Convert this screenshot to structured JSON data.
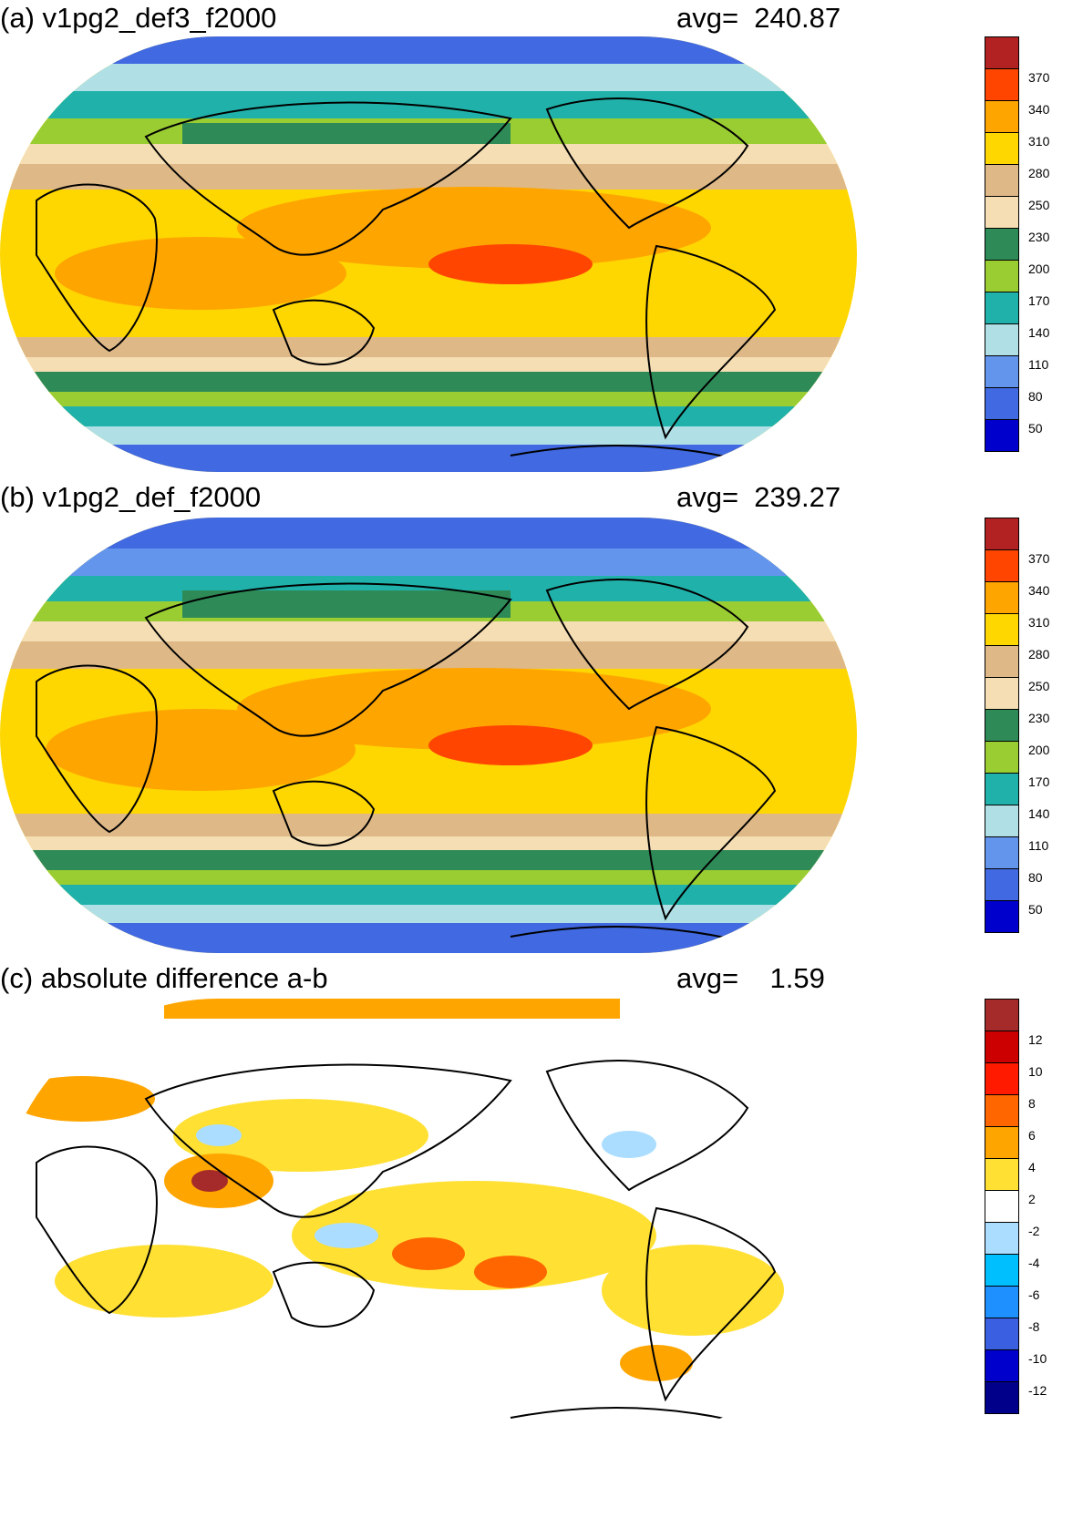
{
  "panels": [
    {
      "title": "(a) v1pg2_def3_f2000",
      "avg_text": "avg=  240.87",
      "colorbar": {
        "labels": [
          "370",
          "340",
          "310",
          "280",
          "250",
          "230",
          "200",
          "170",
          "140",
          "110",
          "80",
          "50"
        ],
        "colors": [
          "#B22222",
          "#FF4500",
          "#FFA500",
          "#FFD700",
          "#DEB887",
          "#F5DEB3",
          "#2E8B57",
          "#9ACD32",
          "#20B2AA",
          "#B0E0E6",
          "#6495ED",
          "#4169E1",
          "#0000CD"
        ]
      }
    },
    {
      "title": "(b) v1pg2_def_f2000",
      "avg_text": "avg=  239.27",
      "colorbar": {
        "labels": [
          "370",
          "340",
          "310",
          "280",
          "250",
          "230",
          "200",
          "170",
          "140",
          "110",
          "80",
          "50"
        ],
        "colors": [
          "#B22222",
          "#FF4500",
          "#FFA500",
          "#FFD700",
          "#DEB887",
          "#F5DEB3",
          "#2E8B57",
          "#9ACD32",
          "#20B2AA",
          "#B0E0E6",
          "#6495ED",
          "#4169E1",
          "#0000CD"
        ]
      }
    },
    {
      "title": "(c) absolute difference a-b",
      "avg_text": "avg=    1.59",
      "colorbar": {
        "labels": [
          "12",
          "10",
          "8",
          "6",
          "4",
          "2",
          "-2",
          "-4",
          "-6",
          "-8",
          "-10",
          "-12"
        ],
        "colors": [
          "#A52A2A",
          "#CC0000",
          "#FF1A00",
          "#FF6600",
          "#FFA500",
          "#FFE033",
          "#FFFFFF",
          "#AADDFF",
          "#00BFFF",
          "#1E90FF",
          "#3A5FE0",
          "#0000CD",
          "#00008B"
        ]
      }
    }
  ]
}
